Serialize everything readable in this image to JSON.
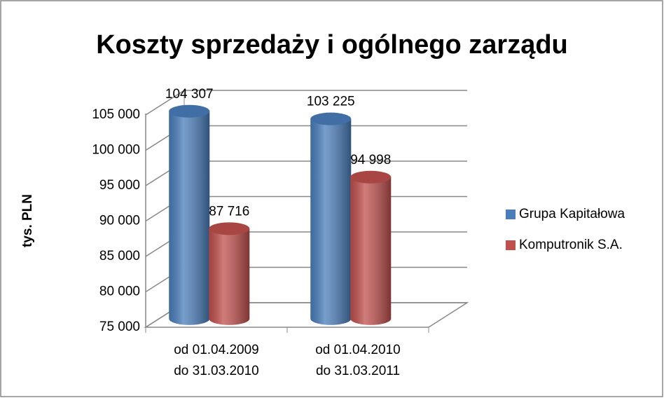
{
  "chart_data": {
    "type": "bar3d",
    "title": "Koszty sprzedaży i ogólnego zarządu",
    "y_label": "tys. PLN",
    "categories": [
      [
        "od 01.04.2009",
        "do 31.03.2010"
      ],
      [
        "od 01.04.2010",
        "do 31.03.2011"
      ]
    ],
    "series": [
      {
        "name": "Grupa Kapitałowa",
        "color": "#4a7ebb",
        "values": [
          104307,
          103225
        ],
        "value_labels": [
          "104 307",
          "103 225"
        ]
      },
      {
        "name": "Komputronik S.A.",
        "color": "#c0504d",
        "values": [
          87716,
          94998
        ],
        "value_labels": [
          "87 716",
          "94 998"
        ]
      }
    ],
    "ylim": [
      75000,
      105000
    ],
    "yticks": [
      {
        "value": 75000,
        "label": "75 000"
      },
      {
        "value": 80000,
        "label": "80 000"
      },
      {
        "value": 85000,
        "label": "85 000"
      },
      {
        "value": 90000,
        "label": "90 000"
      },
      {
        "value": 95000,
        "label": "95 000"
      },
      {
        "value": 100000,
        "label": "100 000"
      },
      {
        "value": 105000,
        "label": "105 000"
      }
    ],
    "grid": true,
    "legend": "right"
  }
}
